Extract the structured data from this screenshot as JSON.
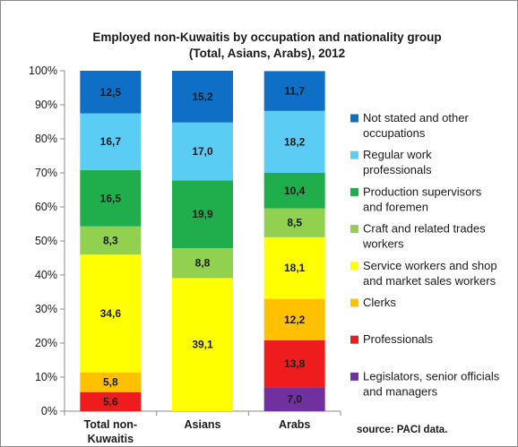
{
  "chart_data": {
    "type": "bar",
    "stacked": true,
    "title_lines": [
      "Employed non-Kuwaitis by occupation and nationality group",
      "(Total, Asians, Arabs), 2012"
    ],
    "categories": [
      [
        "Total non-",
        "Kuwaitis"
      ],
      [
        "Asians"
      ],
      [
        "Arabs"
      ]
    ],
    "yticks": [
      "0%",
      "10%",
      "20%",
      "30%",
      "40%",
      "50%",
      "60%",
      "70%",
      "80%",
      "90%",
      "100%"
    ],
    "ylim": [
      0,
      100
    ],
    "grid": false,
    "legend_position": "right",
    "series": [
      {
        "name_lines": [
          "Legislators, senior officials",
          "and managers"
        ],
        "color": "#7030a0",
        "values": [
          0,
          0,
          7.0
        ],
        "labels": [
          "",
          "",
          "7,0"
        ]
      },
      {
        "name_lines": [
          "Professionals"
        ],
        "color": "#ee1c1c",
        "values": [
          5.6,
          0,
          13.8
        ],
        "labels": [
          "5,6",
          "",
          "13,8"
        ]
      },
      {
        "name_lines": [
          "Clerks"
        ],
        "color": "#ffc000",
        "values": [
          5.8,
          0,
          12.2
        ],
        "labels": [
          "5,8",
          "",
          "12,2"
        ]
      },
      {
        "name_lines": [
          "Service workers and shop",
          "and market sales workers"
        ],
        "color": "#ffff00",
        "values": [
          34.6,
          39.1,
          18.1
        ],
        "labels": [
          "34,6",
          "39,1",
          "18,1"
        ]
      },
      {
        "name_lines": [
          "Craft and related trades",
          "workers"
        ],
        "color": "#92d050",
        "values": [
          8.3,
          8.8,
          8.5
        ],
        "labels": [
          "8,3",
          "8,8",
          "8,5"
        ]
      },
      {
        "name_lines": [
          "Production supervisors",
          "and foremen"
        ],
        "color": "#1fae4b",
        "values": [
          16.5,
          19.9,
          10.4
        ],
        "labels": [
          "16,5",
          "19,9",
          "10,4"
        ]
      },
      {
        "name_lines": [
          "Regular work",
          "professionals"
        ],
        "color": "#5bcdf5",
        "values": [
          16.7,
          17.0,
          18.2
        ],
        "labels": [
          "16,7",
          "17,0",
          "18,2"
        ]
      },
      {
        "name_lines": [
          "Not stated and other",
          "occupations"
        ],
        "color": "#0f6fc6",
        "values": [
          12.5,
          15.2,
          11.7
        ],
        "labels": [
          "12,5",
          "15,2",
          "11,7"
        ]
      }
    ],
    "source": "source: PACI data."
  }
}
